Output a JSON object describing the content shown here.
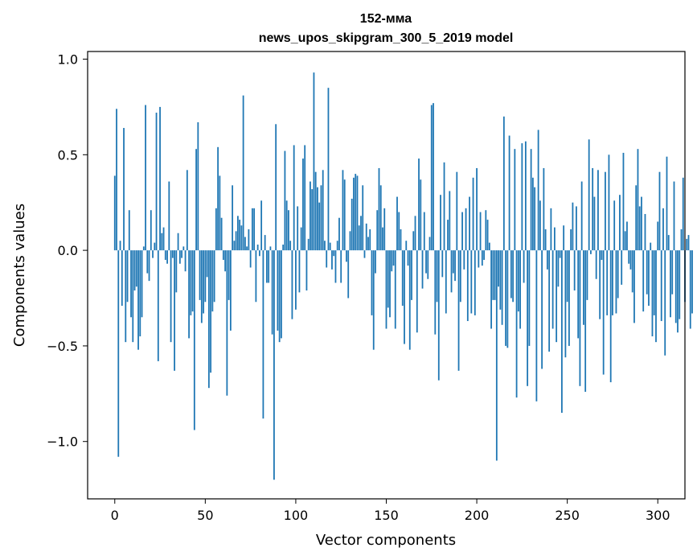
{
  "chart_data": {
    "type": "bar",
    "title": "152-мма",
    "subtitle": "news_upos_skipgram_300_5_2019 model",
    "xlabel": "Vector components",
    "ylabel": "Components values",
    "xlim": [
      -15,
      315
    ],
    "ylim": [
      -1.3,
      1.04
    ],
    "x_ticks": [
      0,
      50,
      100,
      150,
      200,
      250,
      300
    ],
    "x_tick_labels": [
      "0",
      "50",
      "100",
      "150",
      "200",
      "250",
      "300"
    ],
    "y_ticks": [
      -1.0,
      -0.5,
      0.0,
      0.5,
      1.0
    ],
    "y_tick_labels": [
      "−1.0",
      "−0.5",
      "0.0",
      "0.5",
      "1.0"
    ],
    "grid": false,
    "bar_color": "#1f77b4",
    "series": [
      {
        "values": [
          0.39,
          0.74,
          -1.08,
          0.05,
          -0.29,
          0.64,
          -0.48,
          -0.27,
          0.21,
          -0.35,
          -0.48,
          -0.21,
          -0.19,
          -0.52,
          -0.45,
          -0.35,
          0.02,
          0.76,
          -0.12,
          -0.16,
          0.21,
          -0.04,
          0.04,
          0.72,
          -0.58,
          0.75,
          0.09,
          0.12,
          -0.05,
          -0.07,
          0.36,
          -0.48,
          -0.04,
          -0.63,
          -0.22,
          0.09,
          -0.07,
          -0.04,
          0.02,
          -0.11,
          0.42,
          -0.46,
          -0.34,
          -0.32,
          -0.94,
          0.53,
          0.67,
          -0.26,
          -0.38,
          -0.33,
          -0.27,
          -0.14,
          -0.72,
          -0.64,
          -0.32,
          -0.27,
          0.22,
          0.54,
          0.39,
          0.17,
          -0.05,
          -0.11,
          -0.76,
          -0.26,
          -0.42,
          0.34,
          0.05,
          0.1,
          0.18,
          0.16,
          0.13,
          0.81,
          0.07,
          0.02,
          0.11,
          -0.09,
          0.22,
          0.22,
          -0.27,
          0.03,
          -0.03,
          0.26,
          -0.88,
          0.08,
          -0.17,
          -0.17,
          0.02,
          -0.44,
          -1.2,
          0.66,
          -0.42,
          -0.48,
          -0.46,
          0.03,
          0.52,
          0.26,
          0.21,
          0.05,
          -0.36,
          0.55,
          -0.31,
          0.23,
          -0.22,
          0.12,
          0.48,
          0.55,
          -0.21,
          0.06,
          0.36,
          0.32,
          0.93,
          0.41,
          0.33,
          0.25,
          0.34,
          0.42,
          0.05,
          -0.09,
          0.85,
          0.04,
          -0.1,
          -0.03,
          -0.17,
          0.05,
          0.17,
          -0.17,
          0.42,
          0.37,
          -0.06,
          -0.25,
          0.1,
          0.27,
          0.38,
          0.4,
          0.39,
          0.13,
          0.18,
          0.34,
          -0.04,
          0.14,
          0.07,
          0.11,
          -0.34,
          -0.52,
          -0.12,
          0.21,
          0.43,
          0.34,
          0.12,
          0.22,
          -0.41,
          -0.3,
          -0.35,
          -0.11,
          -0.08,
          -0.41,
          0.28,
          0.2,
          0.11,
          -0.29,
          -0.49,
          0.05,
          -0.08,
          -0.52,
          -0.26,
          0.1,
          0.18,
          -0.43,
          0.48,
          0.37,
          -0.2,
          0.2,
          -0.12,
          -0.15,
          0.07,
          0.76,
          0.77,
          -0.44,
          -0.27,
          -0.68,
          0.29,
          -0.14,
          0.46,
          -0.33,
          0.16,
          0.31,
          -0.22,
          -0.12,
          -0.16,
          0.41,
          -0.63,
          -0.27,
          0.2,
          -0.1,
          0.22,
          -0.37,
          0.28,
          -0.33,
          0.38,
          -0.34,
          0.43,
          -0.09,
          0.2,
          -0.08,
          -0.05,
          0.21,
          0.16,
          0.04,
          -0.41,
          -0.26,
          -0.26,
          -1.1,
          -0.19,
          -0.31,
          -0.39,
          0.7,
          -0.5,
          -0.51,
          0.6,
          -0.25,
          -0.27,
          0.53,
          -0.77,
          -0.32,
          -0.41,
          0.56,
          -0.17,
          0.57,
          -0.71,
          -0.5,
          0.53,
          0.38,
          0.33,
          -0.79,
          0.63,
          0.26,
          -0.62,
          0.43,
          0.11,
          -0.1,
          -0.53,
          0.22,
          -0.41,
          0.12,
          -0.48,
          -0.19,
          -0.04,
          -0.85,
          0.13,
          -0.56,
          -0.27,
          -0.5,
          0.11,
          0.25,
          -0.21,
          0.23,
          -0.46,
          -0.71,
          0.36,
          -0.39,
          -0.74,
          -0.26,
          0.58,
          -0.02,
          0.43,
          0.28,
          -0.15,
          0.42,
          -0.36,
          -0.05,
          -0.65,
          0.41,
          -0.34,
          0.5,
          -0.69,
          -0.34,
          0.26,
          -0.33,
          -0.25,
          0.29,
          -0.18,
          0.51,
          0.1,
          0.15,
          -0.07,
          -0.1,
          -0.22,
          -0.38,
          0.34,
          0.53,
          0.23,
          0.28,
          -0.32,
          0.19,
          -0.23,
          -0.29,
          0.04,
          -0.45,
          -0.34,
          -0.48,
          0.15,
          0.41,
          -0.37,
          0.22,
          -0.55,
          0.49,
          0.08,
          -0.35,
          -0.23,
          0.36,
          -0.38,
          -0.43,
          -0.36,
          0.11,
          0.38,
          -0.27,
          0.06,
          0.08,
          -0.41,
          -0.33
        ]
      }
    ]
  }
}
